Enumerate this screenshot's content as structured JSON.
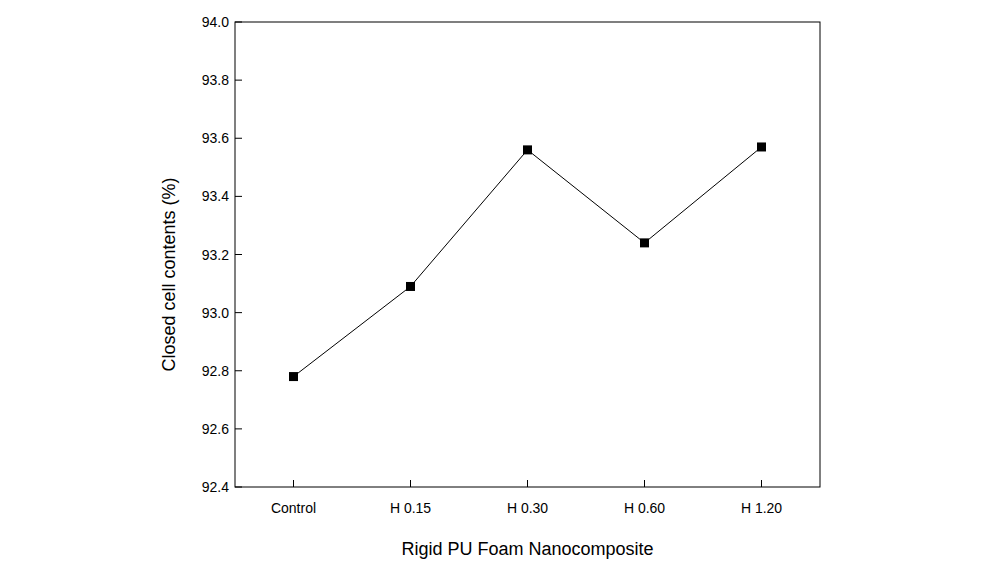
{
  "chart_data": {
    "type": "line",
    "x_label": "Rigid PU Foam Nanocomposite",
    "y_label": "Closed cell contents (%)",
    "categories": [
      "Control",
      "H 0.15",
      "H 0.30",
      "H 0.60",
      "H 1.20"
    ],
    "values": [
      92.78,
      93.09,
      93.56,
      93.24,
      93.57
    ],
    "color": "#000000",
    "marker": "square",
    "line_style": "solid",
    "ylim": [
      92.4,
      94.0
    ],
    "yticks": [
      92.4,
      92.6,
      92.8,
      {
        "value": 93.0,
        "label": "93.0"
      },
      93.2,
      93.4,
      93.6,
      93.8,
      {
        "value": 94.0,
        "label": "94.0"
      }
    ],
    "grid": false
  }
}
